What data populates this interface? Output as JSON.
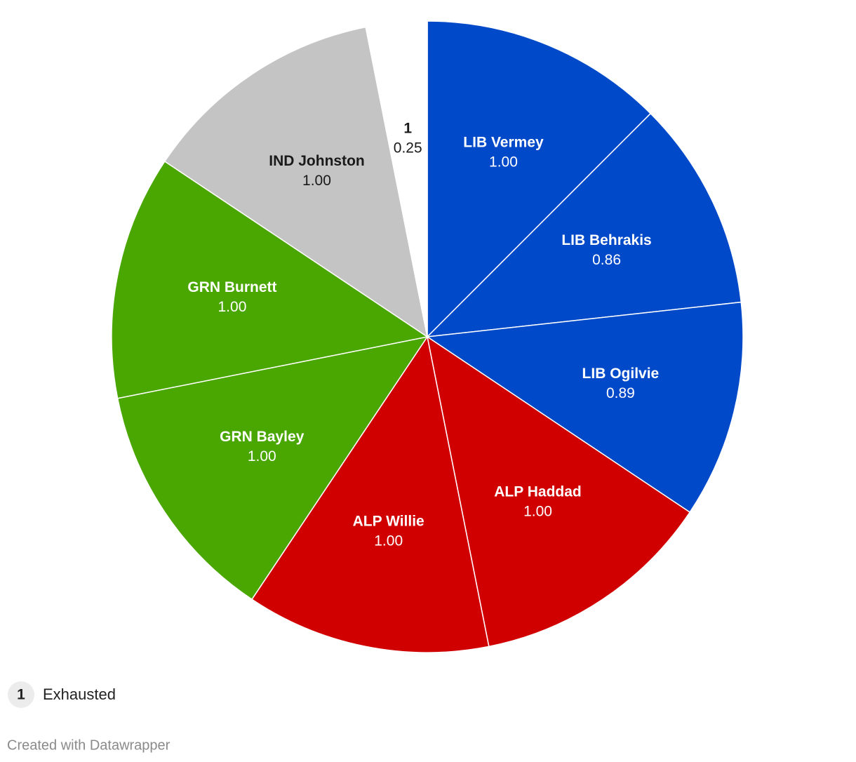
{
  "chart_data": {
    "type": "pie",
    "categories": [
      "LIB Vermey",
      "LIB Behrakis",
      "LIB Ogilvie",
      "ALP Haddad",
      "ALP Willie",
      "GRN Bayley",
      "GRN Burnett",
      "IND Johnston",
      "1"
    ],
    "values": [
      1.0,
      0.86,
      0.89,
      1.0,
      1.0,
      1.0,
      1.0,
      1.0,
      0.25
    ],
    "value_labels": [
      "1.00",
      "0.86",
      "0.89",
      "1.00",
      "1.00",
      "1.00",
      "1.00",
      "1.00",
      "0.25"
    ],
    "colors": [
      "#0049c9",
      "#0049c9",
      "#0049c9",
      "#d10000",
      "#d10000",
      "#4aa600",
      "#4aa600",
      "#c4c4c4",
      "#ffffff"
    ],
    "legend_note": "Exhausted",
    "footer": "Created with Datawrapper"
  }
}
